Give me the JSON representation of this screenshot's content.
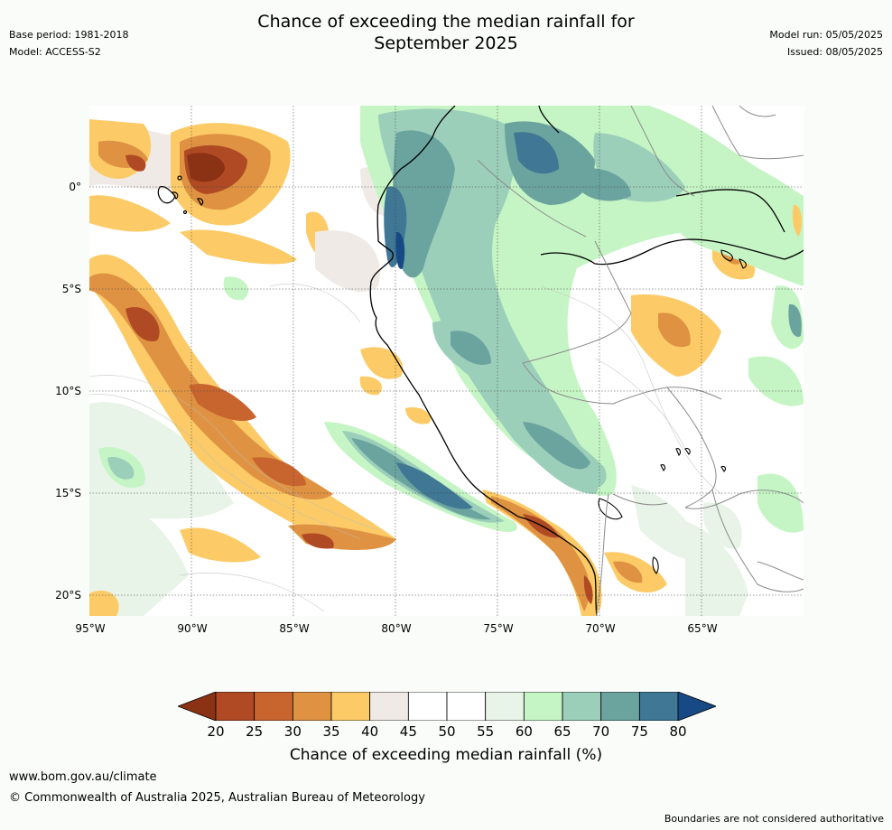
{
  "title_line1": "Chance of exceeding the median rainfall for",
  "title_line2": "September 2025",
  "base_period": "Base period: 1981-2018",
  "model": "Model: ACCESS-S2",
  "model_run": "Model run: 05/05/2025",
  "issued": "Issued: 08/05/2025",
  "lat_labels": [
    "0°",
    "5°S",
    "10°S",
    "15°S",
    "20°S"
  ],
  "lon_labels": [
    "95°W",
    "90°W",
    "85°W",
    "80°W",
    "75°W",
    "70°W",
    "65°W"
  ],
  "colorbar": {
    "labels": [
      "20",
      "25",
      "30",
      "35",
      "40",
      "45",
      "50",
      "55",
      "60",
      "65",
      "70",
      "75",
      "80"
    ],
    "colors": [
      "#8b3214",
      "#b04a25",
      "#c8652f",
      "#df9342",
      "#fccb67",
      "#f0eae6",
      "#ffffff",
      "#ffffff",
      "#e8f4e8",
      "#c6f5c5",
      "#9ccfba",
      "#6ba39f",
      "#3f7794",
      "#174a84"
    ],
    "title": "Chance of exceeding median rainfall (%)"
  },
  "footer": {
    "url": "www.bom.gov.au/climate",
    "copyright": "© Commonwealth of Australia 2025, Australian Bureau of Meteorology",
    "disclaimer": "Boundaries are not considered authoritative"
  }
}
